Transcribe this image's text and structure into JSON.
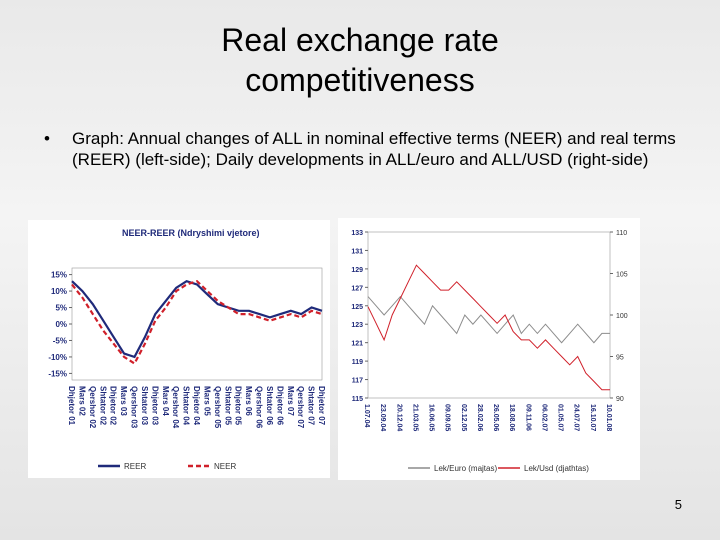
{
  "slide": {
    "title": [
      "Real exchange rate",
      "competitiveness"
    ],
    "bullet": "Graph: Annual changes of ALL in nominal effective terms (NEER) and real terms (REER) (left-side); Daily developments in ALL/euro and ALL/USD (right-side)",
    "page_number": "5"
  },
  "chart_data": [
    {
      "type": "line",
      "title": "NEER-REER (Ndryshimi vjetore)",
      "categories": [
        "Dhjetor 01",
        "Mars 02",
        "Qershor 02",
        "Shtator 02",
        "Dhjetor 02",
        "Mars 03",
        "Qershor 03",
        "Shtator 03",
        "Dhjetor 03",
        "Mars 04",
        "Qershor 04",
        "Shtator 04",
        "Dhjetor 04",
        "Mars 05",
        "Qershor 05",
        "Shtator 05",
        "Dhjetor 05",
        "Mars 06",
        "Qershor 06",
        "Shtator 06",
        "Dhjetor 06",
        "Mars 07",
        "Qershor 07",
        "Shtator 07",
        "Dhjetor 07"
      ],
      "series": [
        {
          "name": "REER",
          "color": "#1f2a7a",
          "style": "solid",
          "values": [
            13,
            10,
            6,
            1,
            -4,
            -9,
            -10,
            -4,
            3,
            7,
            11,
            13,
            12,
            9,
            6,
            5,
            4,
            4,
            3,
            2,
            3,
            4,
            3,
            5,
            4
          ]
        },
        {
          "name": "NEER",
          "color": "#d0202a",
          "style": "dashed",
          "values": [
            12,
            8,
            3,
            -2,
            -6,
            -10,
            -12,
            -6,
            1,
            5,
            10,
            12,
            13,
            10,
            7,
            5,
            3,
            3,
            2,
            1,
            2,
            3,
            2,
            4,
            3
          ]
        }
      ],
      "ylim": [
        -17,
        17
      ],
      "yticks": [
        {
          "value": 15,
          "label": "15%"
        },
        {
          "value": 10,
          "label": "10%"
        },
        {
          "value": 5,
          "label": "5%"
        },
        {
          "value": 0,
          "label": "0%"
        },
        {
          "value": -5,
          "label": "-5%"
        },
        {
          "value": -10,
          "label": "-10%"
        },
        {
          "value": -15,
          "label": "-15%"
        }
      ]
    },
    {
      "type": "line",
      "categories": [
        "1.07.04",
        null,
        "23.09.04",
        null,
        "20.12.04",
        null,
        "21.03.05",
        null,
        "16.06.05",
        null,
        "09.09.05",
        null,
        "02.12.05",
        null,
        "28.02.06",
        null,
        "26.05.06",
        null,
        "18.08.06",
        null,
        "09.11.06",
        null,
        "06.02.07",
        null,
        "01.05.07",
        null,
        "24.07.07",
        null,
        "16.10.07",
        null,
        "10.01.08"
      ],
      "series": [
        {
          "name": "Lek/Euro (majtas)",
          "color": "#8c8c8c",
          "values": [
            126,
            125,
            124,
            125,
            126,
            125,
            124,
            123,
            125,
            124,
            123,
            122,
            124,
            123,
            124,
            123,
            122,
            123,
            124,
            122,
            123,
            122,
            123,
            122,
            121,
            122,
            123,
            122,
            121,
            122,
            122
          ]
        },
        {
          "name": "Lek/Usd (djathtas)",
          "color": "#d0202a",
          "axis": "y2",
          "values": [
            101,
            99,
            97,
            100,
            102,
            104,
            106,
            105,
            104,
            103,
            103,
            104,
            103,
            102,
            101,
            100,
            99,
            100,
            98,
            97,
            97,
            96,
            97,
            96,
            95,
            94,
            95,
            93,
            92,
            91,
            91
          ]
        }
      ],
      "ylim": [
        115,
        133
      ],
      "yticks": [
        115,
        117,
        119,
        121,
        123,
        125,
        127,
        129,
        131,
        133
      ],
      "y2lim": [
        90,
        110
      ],
      "y2ticks": [
        90,
        95,
        100,
        105,
        110
      ]
    }
  ]
}
